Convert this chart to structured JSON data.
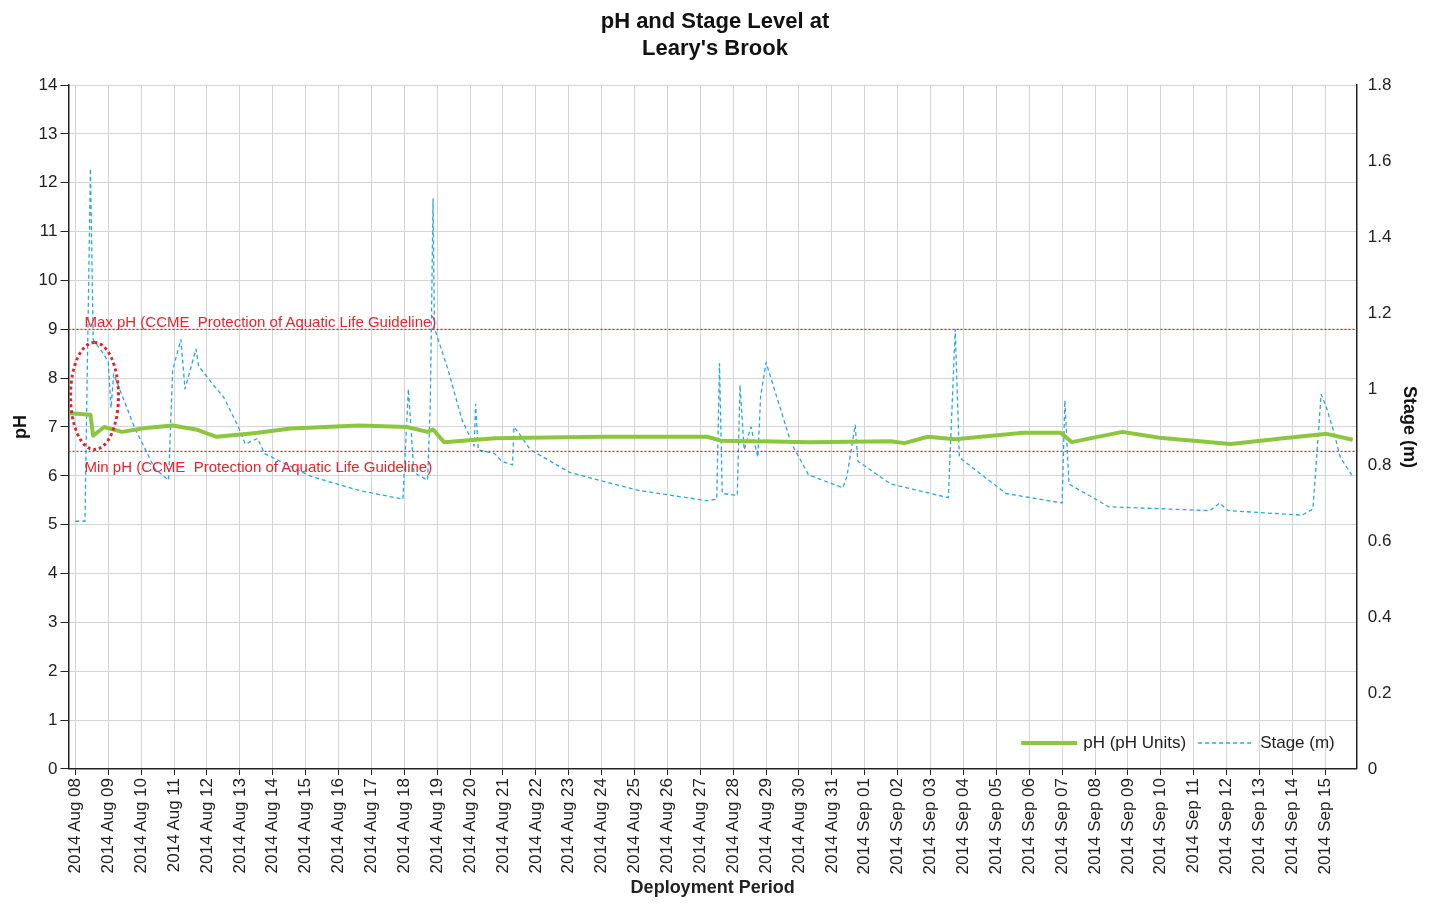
{
  "chart_data": {
    "type": "line",
    "title": "pH and Stage Level at\nLeary's Brook",
    "xlabel": "Deployment Period",
    "ylabel": "pH",
    "y2label": "Stage (m)",
    "xlim": [
      "2014-08-07T19:00",
      "2014-09-15T23:00"
    ],
    "xticks": [
      {
        "value": "2014-08-08",
        "label": "2014 Aug 08"
      },
      {
        "value": "2014-08-09",
        "label": "2014 Aug 09"
      },
      {
        "value": "2014-08-10",
        "label": "2014 Aug 10"
      },
      {
        "value": "2014-08-11",
        "label": "2014 Aug 11"
      },
      {
        "value": "2014-08-12",
        "label": "2014 Aug 12"
      },
      {
        "value": "2014-08-13",
        "label": "2014 Aug 13"
      },
      {
        "value": "2014-08-14",
        "label": "2014 Aug 14"
      },
      {
        "value": "2014-08-15",
        "label": "2014 Aug 15"
      },
      {
        "value": "2014-08-16",
        "label": "2014 Aug 16"
      },
      {
        "value": "2014-08-17",
        "label": "2014 Aug 17"
      },
      {
        "value": "2014-08-18",
        "label": "2014 Aug 18"
      },
      {
        "value": "2014-08-19",
        "label": "2014 Aug 19"
      },
      {
        "value": "2014-08-20",
        "label": "2014 Aug 20"
      },
      {
        "value": "2014-08-21",
        "label": "2014 Aug 21"
      },
      {
        "value": "2014-08-22",
        "label": "2014 Aug 22"
      },
      {
        "value": "2014-08-23",
        "label": "2014 Aug 23"
      },
      {
        "value": "2014-08-24",
        "label": "2014 Aug 24"
      },
      {
        "value": "2014-08-25",
        "label": "2014 Aug 25"
      },
      {
        "value": "2014-08-26",
        "label": "2014 Aug 26"
      },
      {
        "value": "2014-08-27",
        "label": "2014 Aug 27"
      },
      {
        "value": "2014-08-28",
        "label": "2014 Aug 28"
      },
      {
        "value": "2014-08-29",
        "label": "2014 Aug 29"
      },
      {
        "value": "2014-08-30",
        "label": "2014 Aug 30"
      },
      {
        "value": "2014-08-31",
        "label": "2014 Aug 31"
      },
      {
        "value": "2014-09-01",
        "label": "2014 Sep 01"
      },
      {
        "value": "2014-09-02",
        "label": "2014 Sep 02"
      },
      {
        "value": "2014-09-03",
        "label": "2014 Sep 03"
      },
      {
        "value": "2014-09-04",
        "label": "2014 Sep 04"
      },
      {
        "value": "2014-09-05",
        "label": "2014 Sep 05"
      },
      {
        "value": "2014-09-06",
        "label": "2014 Sep 06"
      },
      {
        "value": "2014-09-07",
        "label": "2014 Sep 07"
      },
      {
        "value": "2014-09-08",
        "label": "2014 Sep 08"
      },
      {
        "value": "2014-09-09",
        "label": "2014 Sep 09"
      },
      {
        "value": "2014-09-10",
        "label": "2014 Sep 10"
      },
      {
        "value": "2014-09-11",
        "label": "2014 Sep 11"
      },
      {
        "value": "2014-09-12",
        "label": "2014 Sep 12"
      },
      {
        "value": "2014-09-13",
        "label": "2014 Sep 13"
      },
      {
        "value": "2014-09-14",
        "label": "2014 Sep 14"
      },
      {
        "value": "2014-09-15",
        "label": "2014 Sep 15"
      }
    ],
    "ylim": [
      0,
      14
    ],
    "yticks": [
      0,
      1,
      2,
      3,
      4,
      5,
      6,
      7,
      8,
      9,
      10,
      11,
      12,
      13,
      14
    ],
    "y2lim": [
      0,
      1.8
    ],
    "y2ticks": [
      0,
      0.2,
      0.4,
      0.6,
      0.8,
      1,
      1.2,
      1.4,
      1.6,
      1.8
    ],
    "grid": true,
    "legend": "bottom right",
    "marker": "none",
    "ref_lines": [
      {
        "axis": "y",
        "value": 9,
        "label": "Max pH (CCME  Protection of Aquatic Life Guideline)",
        "color": "#e8242a",
        "line_style": "dotted"
      },
      {
        "axis": "y",
        "value": 6.5,
        "label": "Min pH (CCME  Protection of Aquatic Life Guideline)",
        "color": "#e8242a",
        "line_style": "dotted"
      }
    ],
    "series": [
      {
        "name": "pH (pH Units)",
        "color": "#8cc63f",
        "line_style": "solid",
        "x": [
          "2014-08-07T20:00",
          "2014-08-08T11:00",
          "2014-08-08T13:00",
          "2014-08-08T21:00",
          "2014-08-09T10:00",
          "2014-08-10T03:00",
          "2014-08-10T23:00",
          "2014-08-11T16:00",
          "2014-08-12T07:00",
          "2014-08-13T13:00",
          "2014-08-14T13:00",
          "2014-08-16T15:00",
          "2014-08-18T02:00",
          "2014-08-18T17:00",
          "2014-08-18T21:00",
          "2014-08-19T05:00",
          "2014-08-20T18:00",
          "2014-08-24T02:00",
          "2014-08-27T05:00",
          "2014-08-27T15:00",
          "2014-08-30T07:00",
          "2014-09-01T19:00",
          "2014-09-02T05:00",
          "2014-09-02T22:00",
          "2014-09-03T18:00",
          "2014-09-05T19:00",
          "2014-09-06T23:00",
          "2014-09-07T07:00",
          "2014-09-08T20:00",
          "2014-09-09T23:00",
          "2014-09-12T03:00",
          "2014-09-13T14:00",
          "2014-09-15T01:00",
          "2014-09-15T20:00"
        ],
        "values": [
          7.28,
          7.25,
          6.82,
          7.0,
          6.9,
          6.98,
          7.03,
          6.95,
          6.8,
          6.88,
          6.97,
          7.03,
          7.0,
          6.9,
          6.95,
          6.69,
          6.77,
          6.8,
          6.8,
          6.72,
          6.69,
          6.71,
          6.67,
          6.8,
          6.75,
          6.88,
          6.88,
          6.69,
          6.9,
          6.78,
          6.65,
          6.76,
          6.86,
          6.74
        ]
      },
      {
        "name": "Stage (m)",
        "color": "#29a8e0",
        "line_style": "dashed",
        "axis": "y2",
        "x": [
          "2014-08-08T00:00",
          "2014-08-08T07:00",
          "2014-08-08T11:00",
          "2014-08-08T13:00",
          "2014-08-08T17:00",
          "2014-08-08T21:00",
          "2014-08-09T00:00",
          "2014-08-09T02:00",
          "2014-08-09T04:00",
          "2014-08-09T19:00",
          "2014-08-10T10:00",
          "2014-08-10T20:00",
          "2014-08-10T23:00",
          "2014-08-11T05:00",
          "2014-08-11T08:00",
          "2014-08-11T16:00",
          "2014-08-11T18:00",
          "2014-08-12T07:00",
          "2014-08-12T12:00",
          "2014-08-12T23:00",
          "2014-08-13T04:00",
          "2014-08-13T13:00",
          "2014-08-13T18:00",
          "2014-08-15T04:00",
          "2014-08-16T15:00",
          "2014-08-17T23:00",
          "2014-08-18T03:00",
          "2014-08-18T07:00",
          "2014-08-18T17:00",
          "2014-08-18T19:00",
          "2014-08-18T21:00",
          "2014-08-18T22:00",
          "2014-08-19T08:00",
          "2014-08-19T18:00",
          "2014-08-20T03:00",
          "2014-08-20T04:00",
          "2014-08-20T06:00",
          "2014-08-20T18:00",
          "2014-08-20T23:00",
          "2014-08-21T07:00",
          "2014-08-21T08:00",
          "2014-08-21T13:00",
          "2014-08-21T20:00",
          "2014-08-23T01:00",
          "2014-08-25T03:00",
          "2014-08-27T05:00",
          "2014-08-27T12:00",
          "2014-08-27T14:00",
          "2014-08-27T16:00",
          "2014-08-28T03:00",
          "2014-08-28T05:00",
          "2014-08-28T08:00",
          "2014-08-28T13:00",
          "2014-08-28T18:00",
          "2014-08-28T20:00",
          "2014-08-29T00:00",
          "2014-08-29T06:00",
          "2014-08-29T18:00",
          "2014-08-30T07:00",
          "2014-08-31T08:00",
          "2014-08-31T11:00",
          "2014-08-31T17:00",
          "2014-08-31T19:00",
          "2014-09-01T19:00",
          "2014-09-03T13:00",
          "2014-09-03T18:00",
          "2014-09-03T21:00",
          "2014-09-05T07:00",
          "2014-09-07T00:00",
          "2014-09-07T02:00",
          "2014-09-07T05:00",
          "2014-09-08T10:00",
          "2014-09-11T12:00",
          "2014-09-11T19:00",
          "2014-09-12T01:00",
          "2014-09-14T07:00",
          "2014-09-14T15:00",
          "2014-09-14T21:00",
          "2014-09-15T01:00",
          "2014-09-15T06:00",
          "2014-09-15T11:00",
          "2014-09-15T20:00"
        ],
        "values": [
          0.652,
          0.652,
          1.58,
          1.13,
          1.11,
          1.09,
          1.07,
          0.95,
          1.04,
          0.9,
          0.79,
          0.76,
          1.05,
          1.13,
          1.0,
          1.105,
          1.06,
          1.0,
          0.98,
          0.9,
          0.855,
          0.87,
          0.83,
          0.77,
          0.733,
          0.71,
          1.0,
          0.78,
          0.76,
          0.96,
          1.5,
          1.16,
          1.05,
          0.92,
          0.85,
          0.96,
          0.84,
          0.83,
          0.81,
          0.8,
          0.9,
          0.877,
          0.84,
          0.78,
          0.733,
          0.706,
          0.71,
          1.067,
          0.725,
          0.72,
          1.01,
          0.84,
          0.9,
          0.82,
          0.98,
          1.07,
          1.0,
          0.86,
          0.774,
          0.74,
          0.77,
          0.905,
          0.81,
          0.75,
          0.714,
          1.157,
          0.82,
          0.725,
          0.7,
          0.97,
          0.75,
          0.69,
          0.68,
          0.7,
          0.68,
          0.668,
          0.684,
          0.986,
          0.95,
          0.89,
          0.82,
          0.77
        ]
      }
    ]
  }
}
